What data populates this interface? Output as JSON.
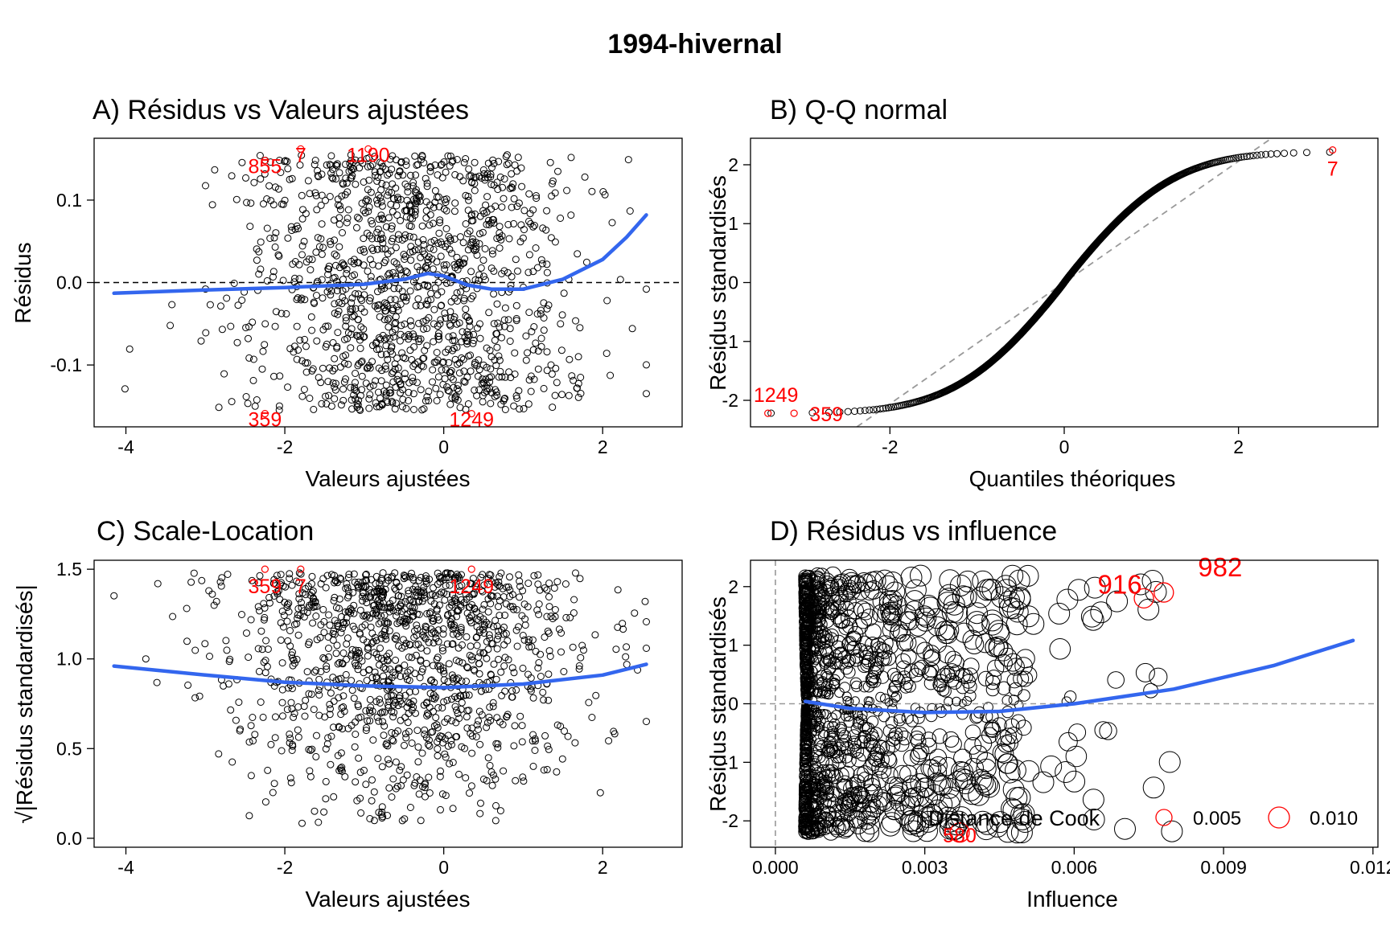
{
  "title": "1994-hivernal",
  "colors": {
    "points": "#000000",
    "highlight": "#ff0000",
    "smooth": "#3366ee",
    "refline": "#000000",
    "qqline": "#999999"
  },
  "chart_data": [
    {
      "id": "A",
      "type": "scatter",
      "title": "A) Résidus vs Valeurs ajustées",
      "xlabel": "Valeurs ajustées",
      "ylabel": "Résidus",
      "xlim": [
        -4.4,
        3.0
      ],
      "ylim": [
        -0.175,
        0.175
      ],
      "xticks": [
        -4,
        -2,
        0,
        2
      ],
      "yticks": [
        -0.1,
        0.0,
        0.1
      ],
      "ytick_labels": [
        "-0.1",
        "0.0",
        "0.1"
      ],
      "n_points": 1300,
      "reference_line": {
        "y": 0,
        "style": "dashed"
      },
      "smooth": {
        "x": [
          -4.15,
          -3.0,
          -2.0,
          -1.0,
          -0.5,
          -0.2,
          0.0,
          0.3,
          0.6,
          1.0,
          1.5,
          2.0,
          2.3,
          2.55
        ],
        "y": [
          -0.013,
          -0.009,
          -0.006,
          -0.002,
          0.004,
          0.011,
          0.008,
          -0.003,
          -0.008,
          -0.008,
          0.004,
          0.028,
          0.055,
          0.082
        ]
      },
      "labeled_points": [
        {
          "label": "855",
          "x": -2.25,
          "y": 0.148
        },
        {
          "label": "7",
          "x": -1.8,
          "y": 0.162
        },
        {
          "label": "1190",
          "x": -0.95,
          "y": 0.162
        },
        {
          "label": "359",
          "x": -2.25,
          "y": -0.159
        },
        {
          "label": "1249",
          "x": 0.35,
          "y": -0.159
        }
      ]
    },
    {
      "id": "B",
      "type": "scatter",
      "title": "B) Q-Q normal",
      "xlabel": "Quantiles théoriques",
      "ylabel": "Résidus standardisés",
      "xlim": [
        -3.6,
        3.6
      ],
      "ylim": [
        -2.45,
        2.45
      ],
      "xticks": [
        -2,
        0,
        2
      ],
      "yticks": [
        -2,
        -1,
        0,
        1,
        2
      ],
      "n_points": 1300,
      "reference_line": {
        "style": "dashed",
        "slope": 1.03,
        "intercept": 0.0
      },
      "labeled_points": [
        {
          "label": "7",
          "x": 3.08,
          "y": 2.25
        },
        {
          "label": "1249",
          "x": -3.4,
          "y": -2.22
        },
        {
          "label": "359",
          "x": -3.1,
          "y": -2.22
        }
      ]
    },
    {
      "id": "C",
      "type": "scatter",
      "title": "C) Scale-Location",
      "xlabel": "Valeurs ajustées",
      "ylabel": "√|Résidus standardisés|",
      "xlim": [
        -4.4,
        3.0
      ],
      "ylim": [
        -0.05,
        1.55
      ],
      "xticks": [
        -4,
        -2,
        0,
        2
      ],
      "yticks": [
        0.0,
        0.5,
        1.0,
        1.5
      ],
      "ytick_labels": [
        "0.0",
        "0.5",
        "1.0",
        "1.5"
      ],
      "n_points": 1300,
      "smooth": {
        "x": [
          -4.15,
          -3.0,
          -2.0,
          -1.0,
          0.0,
          1.0,
          2.0,
          2.55
        ],
        "y": [
          0.96,
          0.91,
          0.87,
          0.85,
          0.84,
          0.86,
          0.91,
          0.97
        ]
      },
      "labeled_points": [
        {
          "label": "359",
          "x": -2.25,
          "y": 1.5
        },
        {
          "label": "7",
          "x": -1.8,
          "y": 1.5
        },
        {
          "label": "1249",
          "x": 0.35,
          "y": 1.5
        }
      ]
    },
    {
      "id": "D",
      "type": "scatter",
      "title": "D) Résidus vs influence",
      "xlabel": "Influence",
      "ylabel": "Résidus standardisés",
      "xlim": [
        -0.0005,
        0.0121
      ],
      "ylim": [
        -2.45,
        2.45
      ],
      "xticks": [
        0.0,
        0.003,
        0.006,
        0.009,
        0.012
      ],
      "xtick_labels": [
        "0.000",
        "0.003",
        "0.006",
        "0.009",
        "0.012"
      ],
      "yticks": [
        -2,
        -1,
        0,
        1,
        2
      ],
      "n_points": 1300,
      "reference_lines": [
        {
          "y": 0,
          "style": "dashed"
        },
        {
          "x": 0,
          "style": "dashed"
        }
      ],
      "smooth": {
        "x": [
          0.0006,
          0.0015,
          0.003,
          0.0045,
          0.006,
          0.008,
          0.01,
          0.0116
        ],
        "y": [
          0.04,
          -0.08,
          -0.15,
          -0.13,
          0.0,
          0.25,
          0.65,
          1.08
        ]
      },
      "labeled_points": [
        {
          "label": "982",
          "x": 0.0078,
          "y": 1.9
        },
        {
          "label": "916",
          "x": 0.0074,
          "y": 1.8
        },
        {
          "label": "580",
          "x": 0.0037,
          "y": -2.2
        }
      ],
      "legend": {
        "title": "Distance de Cook",
        "entries": [
          "0.005",
          "0.010"
        ],
        "placement": "bottom-right"
      }
    }
  ]
}
